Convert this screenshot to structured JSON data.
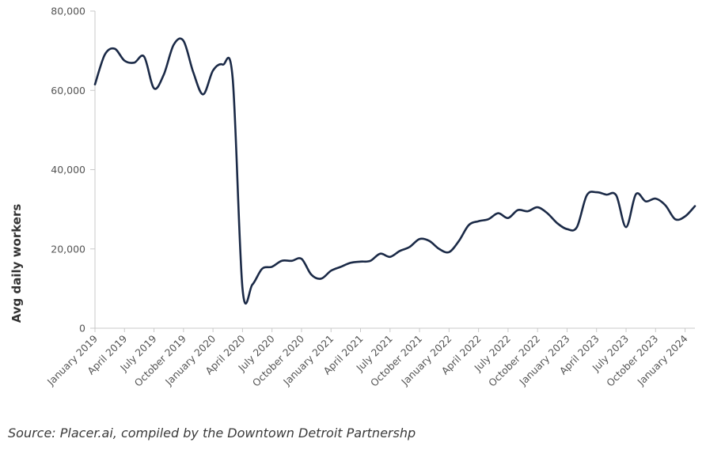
{
  "chart_data": {
    "type": "line",
    "title": "",
    "xlabel": "",
    "ylabel": "Avg daily workers",
    "ylim": [
      0,
      80000
    ],
    "yticks": [
      "0",
      "20,000",
      "40,000",
      "60,000",
      "80,000"
    ],
    "ytick_values": [
      0,
      20000,
      40000,
      60000,
      80000
    ],
    "grid": false,
    "line_color": "#1b2a47",
    "axis_color": "#c8c8c8",
    "x_labels": [
      "January 2019",
      "April 2019",
      "July 2019",
      "October 2019",
      "January 2020",
      "April 2020",
      "July 2020",
      "October 2020",
      "January 2021",
      "April 2021",
      "July 2021",
      "October 2021",
      "January 2022",
      "April 2022",
      "July 2022",
      "October 2022",
      "January 2023",
      "April 2023",
      "July 2023",
      "October 2023",
      "January 2024"
    ],
    "series": [
      {
        "x": [
          "2019-01",
          "2019-02",
          "2019-03",
          "2019-04",
          "2019-05",
          "2019-06",
          "2019-07",
          "2019-08",
          "2019-09",
          "2019-10",
          "2019-11",
          "2019-12",
          "2020-01",
          "2020-02",
          "2020-03",
          "2020-04",
          "2020-05",
          "2020-06",
          "2020-07",
          "2020-08",
          "2020-09",
          "2020-10",
          "2020-11",
          "2020-12",
          "2021-01",
          "2021-02",
          "2021-03",
          "2021-04",
          "2021-05",
          "2021-06",
          "2021-07",
          "2021-08",
          "2021-09",
          "2021-10",
          "2021-11",
          "2021-12",
          "2022-01",
          "2022-02",
          "2022-03",
          "2022-04",
          "2022-05",
          "2022-06",
          "2022-07",
          "2022-08",
          "2022-09",
          "2022-10",
          "2022-11",
          "2022-12",
          "2023-01",
          "2023-02",
          "2023-03",
          "2023-04",
          "2023-05",
          "2023-06",
          "2023-07",
          "2023-08",
          "2023-09",
          "2023-10",
          "2023-11",
          "2023-12",
          "2024-01",
          "2024-02"
        ],
        "values": [
          61500,
          69000,
          70500,
          67500,
          67000,
          68500,
          60500,
          64000,
          71500,
          72500,
          64500,
          59000,
          65000,
          66500,
          63000,
          10000,
          11000,
          15000,
          15500,
          17000,
          17000,
          17500,
          13500,
          12500,
          14500,
          15500,
          16500,
          16800,
          17000,
          18800,
          18000,
          19500,
          20500,
          22500,
          22000,
          20000,
          19200,
          22000,
          26000,
          27000,
          27500,
          29000,
          27800,
          29800,
          29500,
          30500,
          29000,
          26500,
          25000,
          25500,
          33500,
          34300,
          33700,
          33500,
          25500,
          33800,
          32000,
          32700,
          31000,
          27500,
          28200,
          30800
        ]
      }
    ]
  },
  "source": "Source: Placer.ai, compiled by the Downtown Detroit Partnershp"
}
